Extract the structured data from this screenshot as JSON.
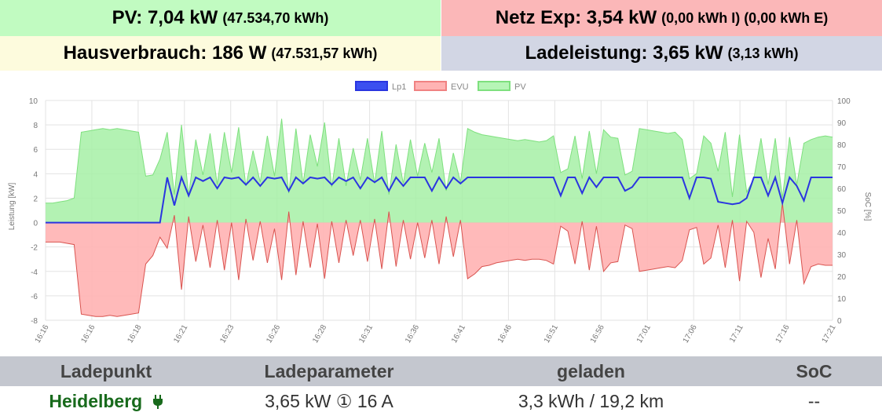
{
  "tiles": {
    "pv": {
      "main": "PV: 7,04 kW",
      "sub": "(47.534,70 kWh)"
    },
    "netz": {
      "main": "Netz Exp: 3,54 kW",
      "sub": "(0,00 kWh I) (0,00 kWh E)"
    },
    "haus": {
      "main": "Hausverbrauch: 186 W",
      "sub": "(47.531,57 kWh)"
    },
    "lade": {
      "main": "Ladeleistung: 3,65 kW",
      "sub": "(3,13 kWh)"
    }
  },
  "colors": {
    "pv_tile": "#c1fbc1",
    "netz_tile": "#fbb7b8",
    "haus_tile": "#fdfbdd",
    "lade_tile": "#d2d6e4",
    "lp1": "#2a35e0",
    "evu": "#f08282",
    "pv": "#7ee07e",
    "name_green": "#186a1c"
  },
  "chart_data": {
    "type": "area",
    "legend": [
      "Lp1",
      "EVU",
      "PV"
    ],
    "legend_position": "top",
    "ylabel_left": "Leistung [kW]",
    "ylabel_right": "SoC [%]",
    "ylim": [
      -8,
      10
    ],
    "yticks": [
      10,
      8,
      6,
      4,
      2,
      0,
      -2,
      -4,
      -6,
      -8
    ],
    "ylim_right": [
      0,
      100
    ],
    "yticks_right": [
      100,
      90,
      80,
      70,
      60,
      50,
      40,
      30,
      20,
      10,
      0
    ],
    "grid": true,
    "xticks": [
      "16:16",
      "16:16",
      "16:18",
      "16:21",
      "16:23",
      "16:26",
      "16:28",
      "16:31",
      "16:36",
      "16:41",
      "16:46",
      "16:51",
      "16:56",
      "17:01",
      "17:06",
      "17:11",
      "17:16",
      "17:21"
    ],
    "series": [
      {
        "name": "PV",
        "y": [
          1.6,
          1.6,
          1.7,
          1.8,
          2.0,
          7.4,
          7.5,
          7.6,
          7.7,
          7.6,
          7.7,
          7.6,
          7.5,
          7.4,
          3.8,
          3.9,
          5.2,
          7.4,
          2.3,
          8.0,
          2.2,
          6.8,
          3.9,
          7.3,
          3.1,
          7.4,
          4.1,
          7.8,
          3.0,
          5.9,
          3.3,
          7.1,
          3.8,
          8.5,
          2.4,
          7.7,
          3.2,
          7.2,
          4.6,
          8.2,
          2.9,
          6.9,
          3.0,
          6.1,
          3.5,
          6.9,
          3.2,
          7.5,
          2.3,
          6.4,
          3.2,
          6.8,
          3.8,
          6.5,
          4.1,
          6.9,
          2.6,
          5.7,
          3.3,
          7.7,
          7.4,
          7.2,
          7.1,
          7.0,
          6.9,
          6.8,
          6.7,
          6.8,
          6.7,
          6.6,
          6.7,
          7.1,
          4.1,
          4.4,
          7.1,
          3.6,
          7.5,
          4.0,
          7.6,
          7.0,
          6.9,
          3.9,
          4.2,
          7.7,
          7.6,
          7.5,
          7.4,
          7.3,
          7.4,
          6.8,
          3.6,
          4.0,
          7.1,
          6.5,
          4.2,
          7.4,
          2.1,
          7.2,
          2.5,
          3.6,
          6.9,
          3.1,
          6.9,
          2.0,
          7.0,
          3.1,
          6.5,
          6.8,
          7.0,
          7.1,
          7.0
        ]
      },
      {
        "name": "EVU",
        "y": [
          -1.6,
          -1.6,
          -1.6,
          -1.7,
          -1.8,
          -7.5,
          -7.6,
          -7.7,
          -7.7,
          -7.6,
          -7.7,
          -7.6,
          -7.5,
          -7.4,
          -3.4,
          -2.7,
          -1.2,
          -2.1,
          0.6,
          -5.5,
          0.5,
          -3.2,
          -0.2,
          -3.7,
          0.2,
          -3.9,
          0.0,
          -4.7,
          0.3,
          -3.1,
          0.1,
          -3.3,
          -0.5,
          -4.7,
          0.9,
          -4.3,
          0.1,
          -3.7,
          -0.1,
          -4.6,
          0.1,
          -3.3,
          0.2,
          -2.7,
          0.2,
          -3.2,
          0.3,
          -3.8,
          0.9,
          -3.6,
          0.2,
          -3.0,
          0.0,
          -2.9,
          0.2,
          -3.4,
          0.5,
          -2.8,
          0.2,
          -4.6,
          -4.2,
          -3.6,
          -3.5,
          -3.3,
          -3.2,
          -3.1,
          -3.0,
          -3.1,
          -3.0,
          -3.0,
          -3.1,
          -3.4,
          -0.3,
          -0.7,
          -3.4,
          0.1,
          -3.9,
          -0.3,
          -4.0,
          -3.3,
          -3.2,
          -0.2,
          -0.5,
          -4.0,
          -3.9,
          -3.8,
          -3.7,
          -3.6,
          -3.7,
          -3.1,
          -0.6,
          -0.4,
          -3.4,
          -2.9,
          -0.2,
          -3.7,
          0.2,
          -4.8,
          0.1,
          -0.8,
          -4.5,
          -1.3,
          -3.8,
          1.6,
          -3.4,
          0.2,
          -5.0,
          -3.6,
          -3.4,
          -3.5,
          -3.5
        ]
      },
      {
        "name": "Lp1",
        "y": [
          0,
          0,
          0,
          0,
          0,
          0,
          0,
          0,
          0,
          0,
          0,
          0,
          0,
          0,
          0,
          0,
          0,
          3.7,
          1.4,
          3.7,
          2.2,
          3.7,
          3.4,
          3.7,
          2.8,
          3.7,
          3.6,
          3.7,
          3.1,
          3.7,
          3.0,
          3.7,
          3.6,
          3.7,
          2.6,
          3.7,
          3.2,
          3.7,
          3.6,
          3.7,
          3.1,
          3.7,
          3.4,
          3.7,
          2.8,
          3.7,
          3.3,
          3.7,
          2.6,
          3.7,
          3.0,
          3.7,
          3.7,
          3.7,
          2.6,
          3.7,
          2.8,
          3.7,
          3.2,
          3.7,
          3.7,
          3.7,
          3.7,
          3.7,
          3.7,
          3.7,
          3.7,
          3.7,
          3.7,
          3.7,
          3.7,
          3.7,
          2.2,
          3.7,
          3.7,
          2.4,
          3.7,
          2.9,
          3.7,
          3.7,
          3.7,
          2.6,
          2.9,
          3.7,
          3.7,
          3.7,
          3.7,
          3.7,
          3.7,
          3.7,
          2.0,
          3.7,
          3.7,
          3.6,
          1.7,
          1.6,
          1.5,
          1.6,
          2.0,
          3.7,
          3.7,
          2.2,
          3.7,
          1.6,
          3.7,
          3.0,
          1.8,
          3.7,
          3.7,
          3.7,
          3.7
        ]
      }
    ]
  },
  "ladepunkte": {
    "headers": [
      "Ladepunkt",
      "Ladeparameter",
      "geladen",
      "SoC"
    ],
    "rows": [
      {
        "name": "Heidelberg",
        "plug_icon": "plug-icon",
        "params": "3,65 kW ① 16 A",
        "charged": "3,3 kWh / 19,2 km",
        "soc": "--"
      }
    ]
  }
}
